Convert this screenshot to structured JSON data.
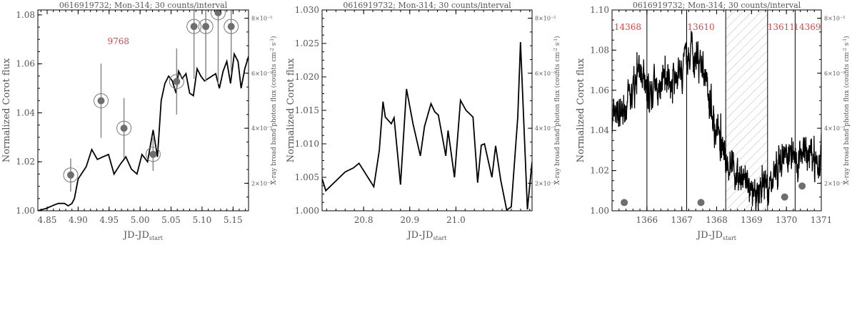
{
  "chart_data": [
    {
      "type": "line",
      "title": "0616919732; Mon-314; 30 counts/interval",
      "xlabel": "JD-JD",
      "xlabel_sub": "start",
      "ylabel_left": "Normalized Corot flux",
      "ylabel_right": "X-ray broad band photon flux (counts cm",
      "ylabel_right_sup1": "-2",
      "ylabel_right_mid": " s",
      "ylabel_right_sup2": "-1",
      "ylabel_right_end": ")",
      "xlim": [
        4.835,
        5.175
      ],
      "ylim": [
        1.0,
        1.082
      ],
      "xticks": [
        4.85,
        4.9,
        4.95,
        5.0,
        5.05,
        5.1,
        5.15
      ],
      "xtick_labels": [
        "4.85",
        "4.90",
        "4.95",
        "5.00",
        "5.05",
        "5.10",
        "5.15"
      ],
      "yticks": [
        1.0,
        1.02,
        1.04,
        1.06,
        1.08
      ],
      "ytick_labels": [
        "1.00",
        "1.02",
        "1.04",
        "1.06",
        "1.08"
      ],
      "y2lim": [
        1e-05,
        8.3e-05
      ],
      "y2ticks": [
        2e-05,
        4e-05,
        6e-05,
        8e-05
      ],
      "y2tick_labels": [
        "2×10⁻⁵",
        "4×10⁻⁵",
        "6×10⁻⁵",
        "8×10⁻⁵"
      ],
      "annotations": [
        {
          "text": "9768",
          "x": 4.965,
          "y": 1.068
        }
      ],
      "series": [
        {
          "kind": "line",
          "x": [
            4.835,
            4.849,
            4.858,
            4.868,
            4.878,
            4.884,
            4.89,
            4.894,
            4.9,
            4.913,
            4.922,
            4.931,
            4.94,
            4.949,
            4.958,
            4.968,
            4.977,
            4.986,
            4.995,
            5.003,
            5.012,
            5.021,
            5.028,
            5.034,
            5.04,
            5.046,
            5.052,
            5.058,
            5.062,
            5.068,
            5.074,
            5.08,
            5.086,
            5.092,
            5.098,
            5.104,
            5.11,
            5.116,
            5.122,
            5.128,
            5.134,
            5.14,
            5.146,
            5.152,
            5.158,
            5.163,
            5.169,
            5.175
          ],
          "y": [
            1.0,
            1.001,
            1.002,
            1.003,
            1.003,
            1.002,
            1.003,
            1.005,
            1.013,
            1.018,
            1.025,
            1.021,
            1.022,
            1.023,
            1.015,
            1.019,
            1.022,
            1.017,
            1.015,
            1.023,
            1.02,
            1.033,
            1.022,
            1.045,
            1.052,
            1.055,
            1.053,
            1.048,
            1.057,
            1.054,
            1.056,
            1.048,
            1.047,
            1.058,
            1.055,
            1.053,
            1.054,
            1.055,
            1.056,
            1.05,
            1.057,
            1.061,
            1.052,
            1.064,
            1.061,
            1.05,
            1.058,
            1.063
          ]
        },
        {
          "kind": "x-ray points with error bars",
          "x": [
            4.888,
            4.937,
            4.974,
            5.021,
            5.059,
            5.087,
            5.106,
            5.126,
            5.147
          ],
          "y": [
            2.3e-05,
            5e-05,
            4e-05,
            3.05e-05,
            5.7e-05,
            7.7e-05,
            7.7e-05,
            8.2e-05,
            7.7e-05
          ],
          "err": [
            6e-06,
            1.35e-05,
            1.1e-05,
            6e-06,
            1.2e-05,
            1.9e-05,
            2e-05,
            2.6e-05,
            1.7e-05
          ]
        }
      ]
    },
    {
      "type": "line",
      "title": "0616919732; Mon-314; 30 counts/interval",
      "xlabel": "JD-JD",
      "xlabel_sub": "start",
      "ylabel_left": "Normalized Corot flux",
      "ylabel_right": "X-ray broad band photon flux (counts cm",
      "ylabel_right_sup1": "-2",
      "ylabel_right_mid": " s",
      "ylabel_right_sup2": "-1",
      "ylabel_right_end": ")",
      "xlim": [
        20.71,
        21.165
      ],
      "ylim": [
        1.0,
        1.03
      ],
      "xticks": [
        20.8,
        20.9,
        21.0
      ],
      "xtick_labels": [
        "20.8",
        "20.9",
        "21.0"
      ],
      "yticks": [
        1.0,
        1.005,
        1.01,
        1.015,
        1.02,
        1.025,
        1.03
      ],
      "ytick_labels": [
        "1.000",
        "1.005",
        "1.010",
        "1.015",
        "1.020",
        "1.025",
        "1.030"
      ],
      "y2lim": [
        1e-05,
        8.3e-05
      ],
      "y2ticks": [
        2e-05,
        4e-05,
        6e-05,
        8e-05
      ],
      "y2tick_labels": [
        "2×10⁻⁵",
        "4×10⁻⁵",
        "6×10⁻⁵",
        "8×10⁻⁵"
      ],
      "series": [
        {
          "kind": "line",
          "x": [
            20.71,
            20.718,
            20.76,
            20.778,
            20.79,
            20.822,
            20.834,
            20.842,
            20.847,
            20.86,
            20.866,
            20.88,
            20.893,
            20.907,
            20.923,
            20.932,
            20.946,
            20.954,
            20.962,
            20.978,
            20.983,
            20.997,
            21.01,
            21.022,
            21.037,
            21.047,
            21.055,
            21.062,
            21.078,
            21.086,
            21.097,
            21.11,
            21.12,
            21.134,
            21.14,
            21.155,
            21.165
          ],
          "y": [
            1.0048,
            1.003,
            1.0058,
            1.0064,
            1.0071,
            1.0036,
            1.009,
            1.0163,
            1.014,
            1.013,
            1.0139,
            1.0039,
            1.0182,
            1.013,
            1.0082,
            1.0126,
            1.016,
            1.0148,
            1.0143,
            1.0082,
            1.012,
            1.005,
            1.0165,
            1.015,
            1.014,
            1.0042,
            1.0098,
            1.01,
            1.005,
            1.0097,
            1.0046,
            1.0001,
            1.0006,
            1.014,
            1.0252,
            1.0002,
            1.0073
          ]
        }
      ]
    },
    {
      "type": "line",
      "title": "0616919732; Mon-314; 30 counts/interval",
      "xlabel": "JD-JD",
      "xlabel_sub": "start",
      "ylabel_left": "Normalized Corot flux",
      "ylabel_right": "X-ray broad band photon flux (counts cm",
      "ylabel_right_sup1": "-2",
      "ylabel_right_mid": " s",
      "ylabel_right_sup2": "-1",
      "ylabel_right_end": ")",
      "xlim": [
        1365.0,
        1371.0
      ],
      "ylim": [
        1.0,
        1.1
      ],
      "xticks": [
        1366,
        1367,
        1368,
        1369,
        1370,
        1371
      ],
      "xtick_labels": [
        "1366",
        "1367",
        "1368",
        "1369",
        "1370",
        "1371"
      ],
      "yticks": [
        1.0,
        1.02,
        1.04,
        1.06,
        1.08,
        1.1
      ],
      "ytick_labels": [
        "1.00",
        "1.02",
        "1.04",
        "1.06",
        "1.08",
        "1.10"
      ],
      "y2lim": [
        1e-05,
        8.3e-05
      ],
      "y2ticks": [
        2e-05,
        4e-05,
        6e-05,
        8e-05
      ],
      "y2tick_labels": [
        "2×10⁻⁵",
        "4×10⁻⁵",
        "6×10⁻⁵",
        "8×10⁻⁵"
      ],
      "vlines": [
        1366.0,
        1367.14,
        1368.26,
        1369.46,
        1370.25
      ],
      "hatched_region": [
        1368.26,
        1369.46
      ],
      "annotations": [
        {
          "text": "14368",
          "x": 1365.45,
          "y": 1.09
        },
        {
          "text": "13610",
          "x": 1367.55,
          "y": 1.09
        },
        {
          "text": "13611",
          "x": 1369.85,
          "y": 1.09
        },
        {
          "text": "14369",
          "x": 1370.6,
          "y": 1.09
        }
      ],
      "series": [
        {
          "kind": "line",
          "envelope_x": [
            1365.0,
            1365.3,
            1365.6,
            1365.8,
            1366.0,
            1366.3,
            1366.6,
            1366.9,
            1367.1,
            1367.3,
            1367.5,
            1367.7,
            1367.9,
            1368.1,
            1368.3,
            1368.6,
            1368.9,
            1369.1,
            1369.3,
            1369.5,
            1369.7,
            1369.9,
            1370.1,
            1370.3,
            1370.5,
            1370.7,
            1370.9,
            1371.0
          ],
          "envelope_y": [
            1.042,
            1.05,
            1.058,
            1.07,
            1.058,
            1.062,
            1.066,
            1.068,
            1.076,
            1.078,
            1.075,
            1.062,
            1.046,
            1.034,
            1.025,
            1.018,
            1.012,
            1.008,
            1.01,
            1.012,
            1.02,
            1.026,
            1.03,
            1.024,
            1.03,
            1.026,
            1.022,
            1.028
          ]
        },
        {
          "kind": "x-ray points",
          "x": [
            1365.35,
            1367.55,
            1369.95,
            1370.45
          ],
          "y": [
            1.3e-05,
            1.3e-05,
            1.5e-05,
            1.9e-05
          ]
        }
      ]
    }
  ]
}
